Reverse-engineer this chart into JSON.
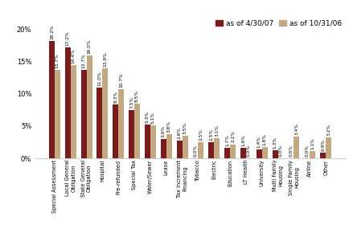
{
  "categories": [
    "Special Assessment",
    "Local General\nObligation",
    "State General\nObligation",
    "Hospital",
    "Pre-refunded",
    "Special Tax",
    "Water/Sewer",
    "Lease",
    "Tax Increment\nFinancing",
    "Tobacco",
    "Electric",
    "Education",
    "LT Health",
    "University",
    "Multi Family\nHousing",
    "Single Family\nHousing",
    "Airline",
    "Other"
  ],
  "series1_label": "as of 4/30/07",
  "series2_label": "as of 10/31/06",
  "series1_color": "#7B1C1C",
  "series2_color": "#C4A882",
  "series1_values": [
    18.2,
    17.2,
    13.7,
    11.0,
    8.3,
    7.5,
    5.3,
    3.0,
    2.8,
    0.0,
    2.5,
    1.7,
    1.6,
    1.4,
    1.3,
    0.0,
    0.0,
    0.9
  ],
  "series2_values": [
    13.7,
    14.4,
    16.0,
    13.9,
    10.7,
    8.5,
    5.1,
    3.8,
    3.5,
    2.5,
    3.1,
    2.2,
    0.0,
    1.8,
    0.0,
    3.4,
    1.1,
    3.2
  ],
  "ylim": [
    0,
    22
  ],
  "yticks": [
    0,
    5,
    10,
    15,
    20
  ],
  "ytick_labels": [
    "0%",
    "5%",
    "10%",
    "15%",
    "20%"
  ],
  "bar_width": 0.35,
  "label_fontsize": 4.2,
  "axis_fontsize": 4.8,
  "tick_fontsize": 6.0,
  "legend_fontsize": 6.5,
  "background_color": "#FFFFFF"
}
